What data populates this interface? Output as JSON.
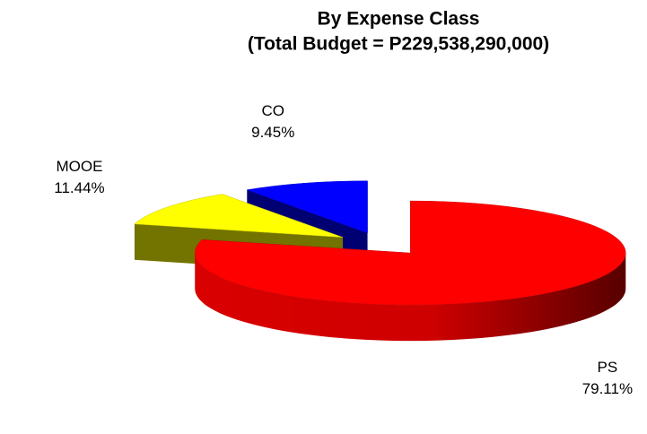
{
  "chart_data": {
    "type": "pie3d",
    "title": "By Expense Class",
    "subtitle": "(Total Budget = P229,538,290,000)",
    "categories": [
      "PS",
      "MOOE",
      "CO"
    ],
    "values": [
      79.11,
      11.44,
      9.45
    ],
    "value_labels": [
      "79.11%",
      "11.44%",
      "9.45%"
    ],
    "colors": [
      "#ff0000",
      "#ffff00",
      "#0000ff"
    ]
  }
}
